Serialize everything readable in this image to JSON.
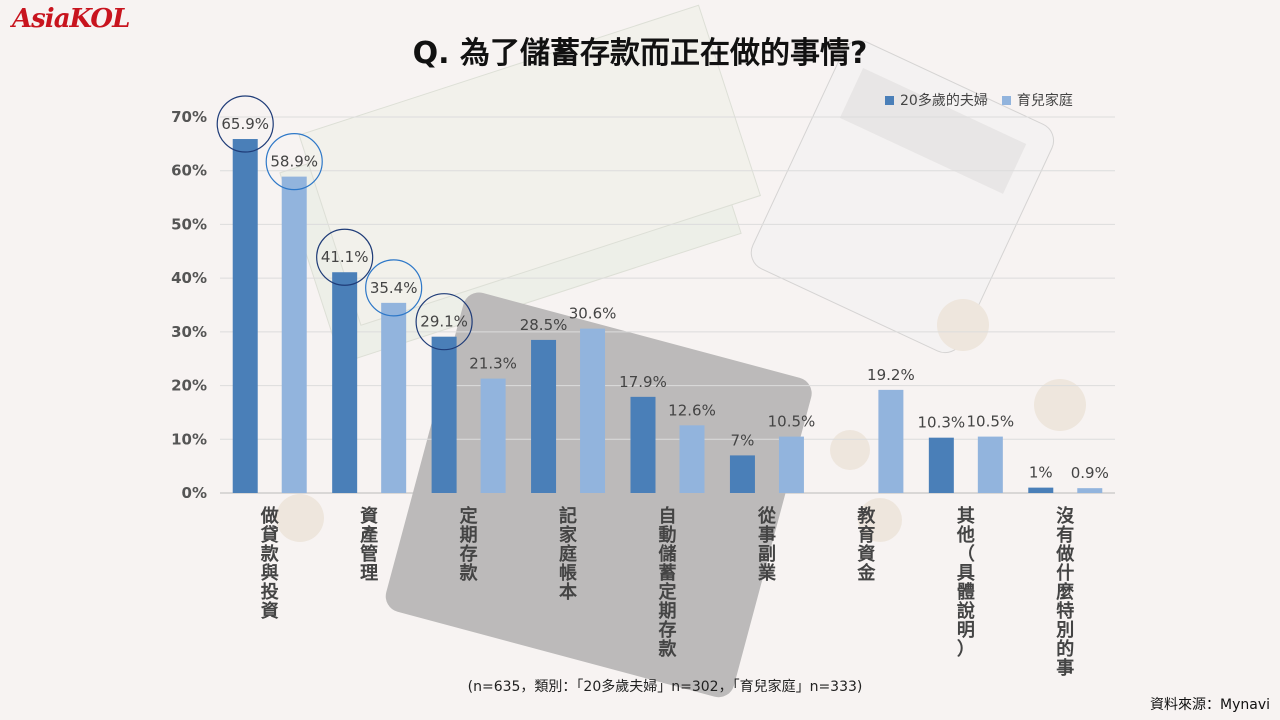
{
  "logo": "AsiaKOL",
  "chart_data": {
    "type": "bar",
    "title": "Q. 為了儲蓄存款而正在做的事情?",
    "categories": [
      "做貸款與投資",
      "資產管理",
      "定期存款",
      "記家庭帳本",
      "自動儲蓄定期存款",
      "從事副業",
      "教育資金",
      "其他（具體說明）",
      "沒有做什麼特別的事"
    ],
    "series": [
      {
        "name": "20多歲的夫婦",
        "color": "#4a7fb8",
        "values": [
          65.9,
          41.1,
          29.1,
          28.5,
          17.9,
          7,
          null,
          10.3,
          1
        ],
        "labels": [
          "65.9%",
          "41.1%",
          "29.1%",
          "28.5%",
          "17.9%",
          "7%",
          "",
          "10.3%",
          "1%"
        ]
      },
      {
        "name": "育兒家庭",
        "color": "#92b4dd",
        "values": [
          58.9,
          35.4,
          21.3,
          30.6,
          12.6,
          10.5,
          19.2,
          10.5,
          0.9
        ],
        "labels": [
          "58.9%",
          "35.4%",
          "21.3%",
          "30.6%",
          "12.6%",
          "10.5%",
          "19.2%",
          "10.5%",
          "0.9%"
        ]
      }
    ],
    "ylim": [
      0,
      70
    ],
    "yticks": [
      "0%",
      "10%",
      "20%",
      "30%",
      "40%",
      "50%",
      "60%",
      "70%"
    ],
    "legend_position": "top-right",
    "grid": true
  },
  "note": "(n=635，類別：「20多歲夫婦」n=302，「育兒家庭」n=333)",
  "source": "資料來源：Mynavi"
}
